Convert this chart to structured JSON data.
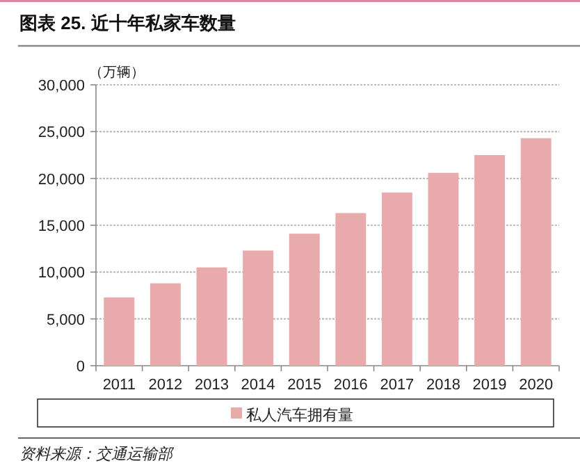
{
  "chart_data": {
    "type": "bar",
    "title": "图表 25. 近十年私家车数量",
    "ylabel": "（万辆）",
    "categories": [
      "2011",
      "2012",
      "2013",
      "2014",
      "2015",
      "2016",
      "2017",
      "2018",
      "2019",
      "2020"
    ],
    "series": [
      {
        "name": "私人汽车拥有量",
        "color": "#e8aaaa",
        "values": [
          7300,
          8800,
          10500,
          12300,
          14100,
          16300,
          18500,
          20600,
          22500,
          24300
        ]
      }
    ],
    "ylim": [
      0,
      30000
    ],
    "yticks": [
      {
        "value": 0,
        "label": "0"
      },
      {
        "value": 5000,
        "label": "5,000"
      },
      {
        "value": 10000,
        "label": "10,000"
      },
      {
        "value": 15000,
        "label": "15,000"
      },
      {
        "value": 20000,
        "label": "20,000"
      },
      {
        "value": 25000,
        "label": "25,000"
      },
      {
        "value": 30000,
        "label": "30,000"
      }
    ],
    "grid": "y",
    "legend": "bottom",
    "annotations": [
      "资料来源：交通运输部"
    ]
  }
}
